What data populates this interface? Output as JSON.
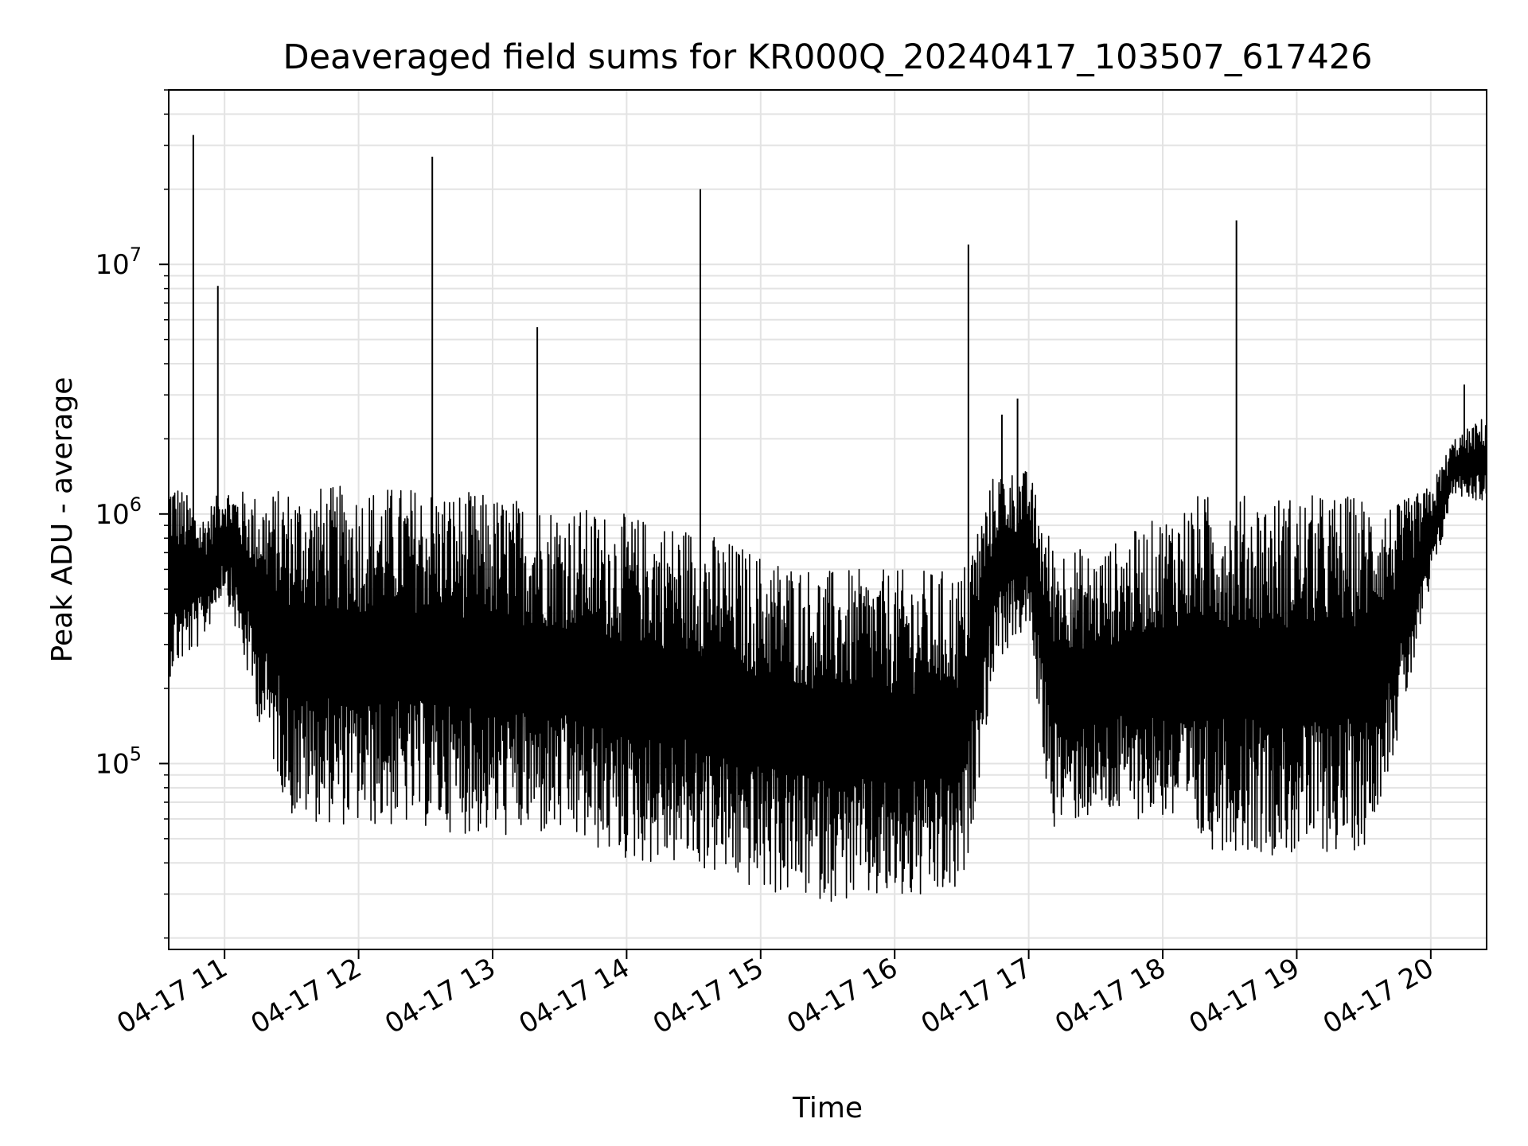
{
  "chart_data": {
    "type": "line",
    "title": "Deaveraged field sums for KR000Q_20240417_103507_617426",
    "xlabel": "Time",
    "ylabel": "Peak ADU - average",
    "yscale": "log",
    "ylim": [
      18000,
      50000000
    ],
    "xlim": [
      "2024-04-17 10:35",
      "2024-04-17 20:25"
    ],
    "grid": true,
    "line_color": "#000000",
    "x_ticks": [
      "04-17 11",
      "04-17 12",
      "04-17 13",
      "04-17 14",
      "04-17 15",
      "04-17 16",
      "04-17 17",
      "04-17 18",
      "04-17 19",
      "04-17 20"
    ],
    "y_ticks": [
      {
        "base": "10",
        "exp": "5",
        "value": 100000
      },
      {
        "base": "10",
        "exp": "6",
        "value": 1000000
      },
      {
        "base": "10",
        "exp": "7",
        "value": 10000000
      }
    ],
    "envelope": [
      {
        "t": "2024-04-17 10:35",
        "upper": 1500000,
        "lower": 220000
      },
      {
        "t": "2024-04-17 10:50",
        "upper": 1000000,
        "lower": 300000
      },
      {
        "t": "2024-04-17 11:00",
        "upper": 1300000,
        "lower": 500000
      },
      {
        "t": "2024-04-17 11:15",
        "upper": 1200000,
        "lower": 150000
      },
      {
        "t": "2024-04-17 11:30",
        "upper": 1300000,
        "lower": 60000
      },
      {
        "t": "2024-04-17 12:00",
        "upper": 1300000,
        "lower": 55000
      },
      {
        "t": "2024-04-17 12:30",
        "upper": 1300000,
        "lower": 55000
      },
      {
        "t": "2024-04-17 13:00",
        "upper": 1200000,
        "lower": 50000
      },
      {
        "t": "2024-04-17 13:30",
        "upper": 1100000,
        "lower": 50000
      },
      {
        "t": "2024-04-17 14:00",
        "upper": 1000000,
        "lower": 40000
      },
      {
        "t": "2024-04-17 14:30",
        "upper": 900000,
        "lower": 38000
      },
      {
        "t": "2024-04-17 15:00",
        "upper": 700000,
        "lower": 30000
      },
      {
        "t": "2024-04-17 15:30",
        "upper": 600000,
        "lower": 28000
      },
      {
        "t": "2024-04-17 16:00",
        "upper": 600000,
        "lower": 27000
      },
      {
        "t": "2024-04-17 16:30",
        "upper": 600000,
        "lower": 28000
      },
      {
        "t": "2024-04-17 16:45",
        "upper": 1500000,
        "lower": 250000
      },
      {
        "t": "2024-04-17 17:00",
        "upper": 1500000,
        "lower": 350000
      },
      {
        "t": "2024-04-17 17:10",
        "upper": 800000,
        "lower": 55000
      },
      {
        "t": "2024-04-17 17:30",
        "upper": 700000,
        "lower": 60000
      },
      {
        "t": "2024-04-17 18:00",
        "upper": 1000000,
        "lower": 60000
      },
      {
        "t": "2024-04-17 18:15",
        "upper": 1200000,
        "lower": 45000
      },
      {
        "t": "2024-04-17 18:30",
        "upper": 1200000,
        "lower": 45000
      },
      {
        "t": "2024-04-17 19:00",
        "upper": 1200000,
        "lower": 42000
      },
      {
        "t": "2024-04-17 19:30",
        "upper": 1200000,
        "lower": 45000
      },
      {
        "t": "2024-04-17 19:45",
        "upper": 1100000,
        "lower": 120000
      },
      {
        "t": "2024-04-17 20:00",
        "upper": 1300000,
        "lower": 500000
      },
      {
        "t": "2024-04-17 20:10",
        "upper": 2000000,
        "lower": 1200000
      },
      {
        "t": "2024-04-17 20:25",
        "upper": 2500000,
        "lower": 1100000
      }
    ],
    "spikes": [
      {
        "t": "2024-04-17 10:46",
        "value": 33000000
      },
      {
        "t": "2024-04-17 10:57",
        "value": 8200000
      },
      {
        "t": "2024-04-17 12:33",
        "value": 27000000
      },
      {
        "t": "2024-04-17 13:20",
        "value": 5600000
      },
      {
        "t": "2024-04-17 14:33",
        "value": 20000000
      },
      {
        "t": "2024-04-17 16:33",
        "value": 12000000
      },
      {
        "t": "2024-04-17 16:48",
        "value": 2500000
      },
      {
        "t": "2024-04-17 16:55",
        "value": 2900000
      },
      {
        "t": "2024-04-17 18:33",
        "value": 15000000
      },
      {
        "t": "2024-04-17 20:15",
        "value": 3300000
      }
    ]
  }
}
